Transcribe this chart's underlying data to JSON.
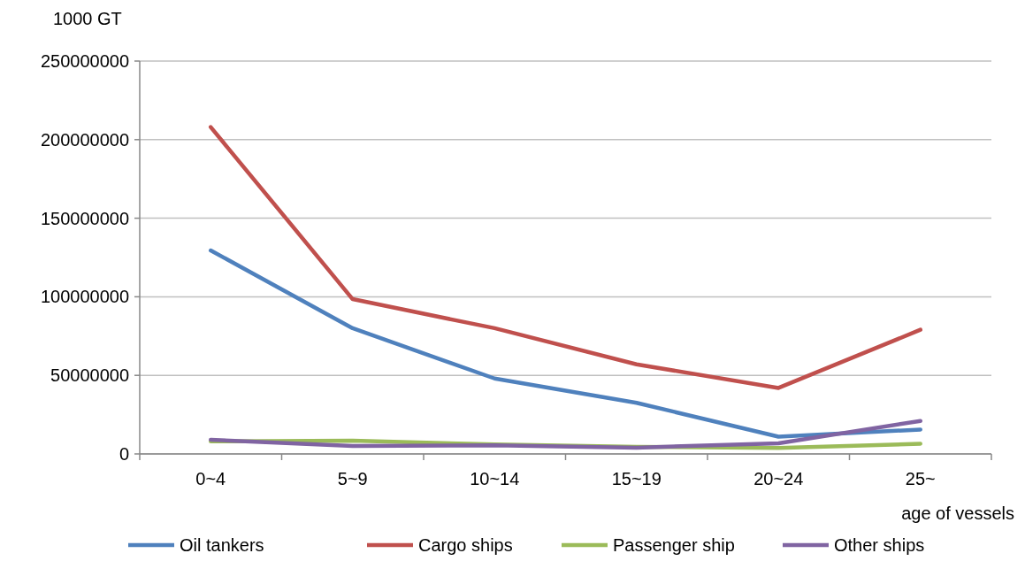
{
  "chart_data": {
    "type": "line",
    "ylabel": "1000 GT",
    "xlabel": "age of vessels",
    "categories": [
      "0~4",
      "5~9",
      "10~14",
      "15~19",
      "20~24",
      "25~"
    ],
    "series": [
      {
        "name": "Oil tankers",
        "color": "#4f81bd",
        "values": [
          129500000,
          80000000,
          48000000,
          32500000,
          11000000,
          15500000
        ]
      },
      {
        "name": "Cargo ships",
        "color": "#c0504d",
        "values": [
          208000000,
          98500000,
          80000000,
          57000000,
          42000000,
          79000000
        ]
      },
      {
        "name": "Passenger ship",
        "color": "#9bbb59",
        "values": [
          8000000,
          8500000,
          6000000,
          4500000,
          3800000,
          6500000
        ]
      },
      {
        "name": "Other ships",
        "color": "#8064a2",
        "values": [
          9000000,
          5000000,
          5500000,
          4000000,
          6800000,
          21000000
        ]
      }
    ],
    "ylim": [
      0,
      250000000
    ],
    "yticks": [
      0,
      50000000,
      100000000,
      150000000,
      200000000,
      250000000
    ],
    "grid": "y",
    "legend": "bottom",
    "marker": "none",
    "line_style": "solid"
  }
}
